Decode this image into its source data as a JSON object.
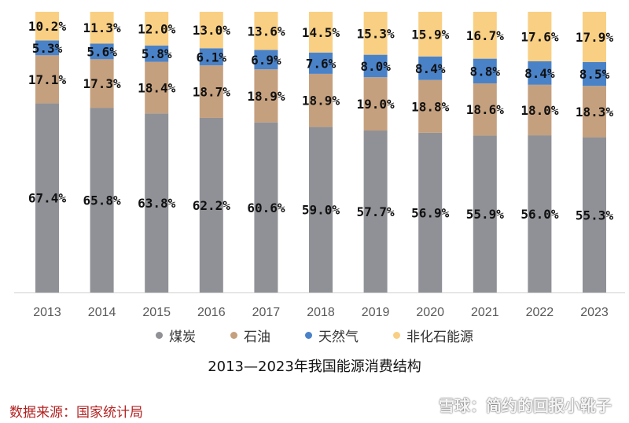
{
  "chart_data": {
    "type": "bar",
    "stacked": true,
    "categories": [
      "2013",
      "2014",
      "2015",
      "2016",
      "2017",
      "2018",
      "2019",
      "2020",
      "2021",
      "2022",
      "2023"
    ],
    "series": [
      {
        "name": "煤炭",
        "color": "#8f9196",
        "values": [
          67.4,
          65.8,
          63.8,
          62.2,
          60.6,
          59.0,
          57.7,
          56.9,
          55.9,
          56.0,
          55.3
        ]
      },
      {
        "name": "石油",
        "color": "#c5a07e",
        "values": [
          17.1,
          17.3,
          18.4,
          18.7,
          18.9,
          18.9,
          19.0,
          18.8,
          18.6,
          18.0,
          18.3
        ]
      },
      {
        "name": "天然气",
        "color": "#4a82c8",
        "values": [
          5.3,
          5.6,
          5.8,
          6.1,
          6.9,
          7.6,
          8.0,
          8.4,
          8.8,
          8.4,
          8.5
        ]
      },
      {
        "name": "非化石能源",
        "color": "#f9cf83",
        "values": [
          10.2,
          11.3,
          12.0,
          13.0,
          13.6,
          14.5,
          15.3,
          15.9,
          16.7,
          17.6,
          17.9
        ]
      }
    ],
    "unit": "%",
    "ylim": [
      0,
      100
    ],
    "title": "2013—2023年我国能源消费结构",
    "legend_position": "bottom",
    "grid": false
  },
  "source": "数据来源：国家统计局",
  "watermark": "雪球：简约的回报小靴子"
}
